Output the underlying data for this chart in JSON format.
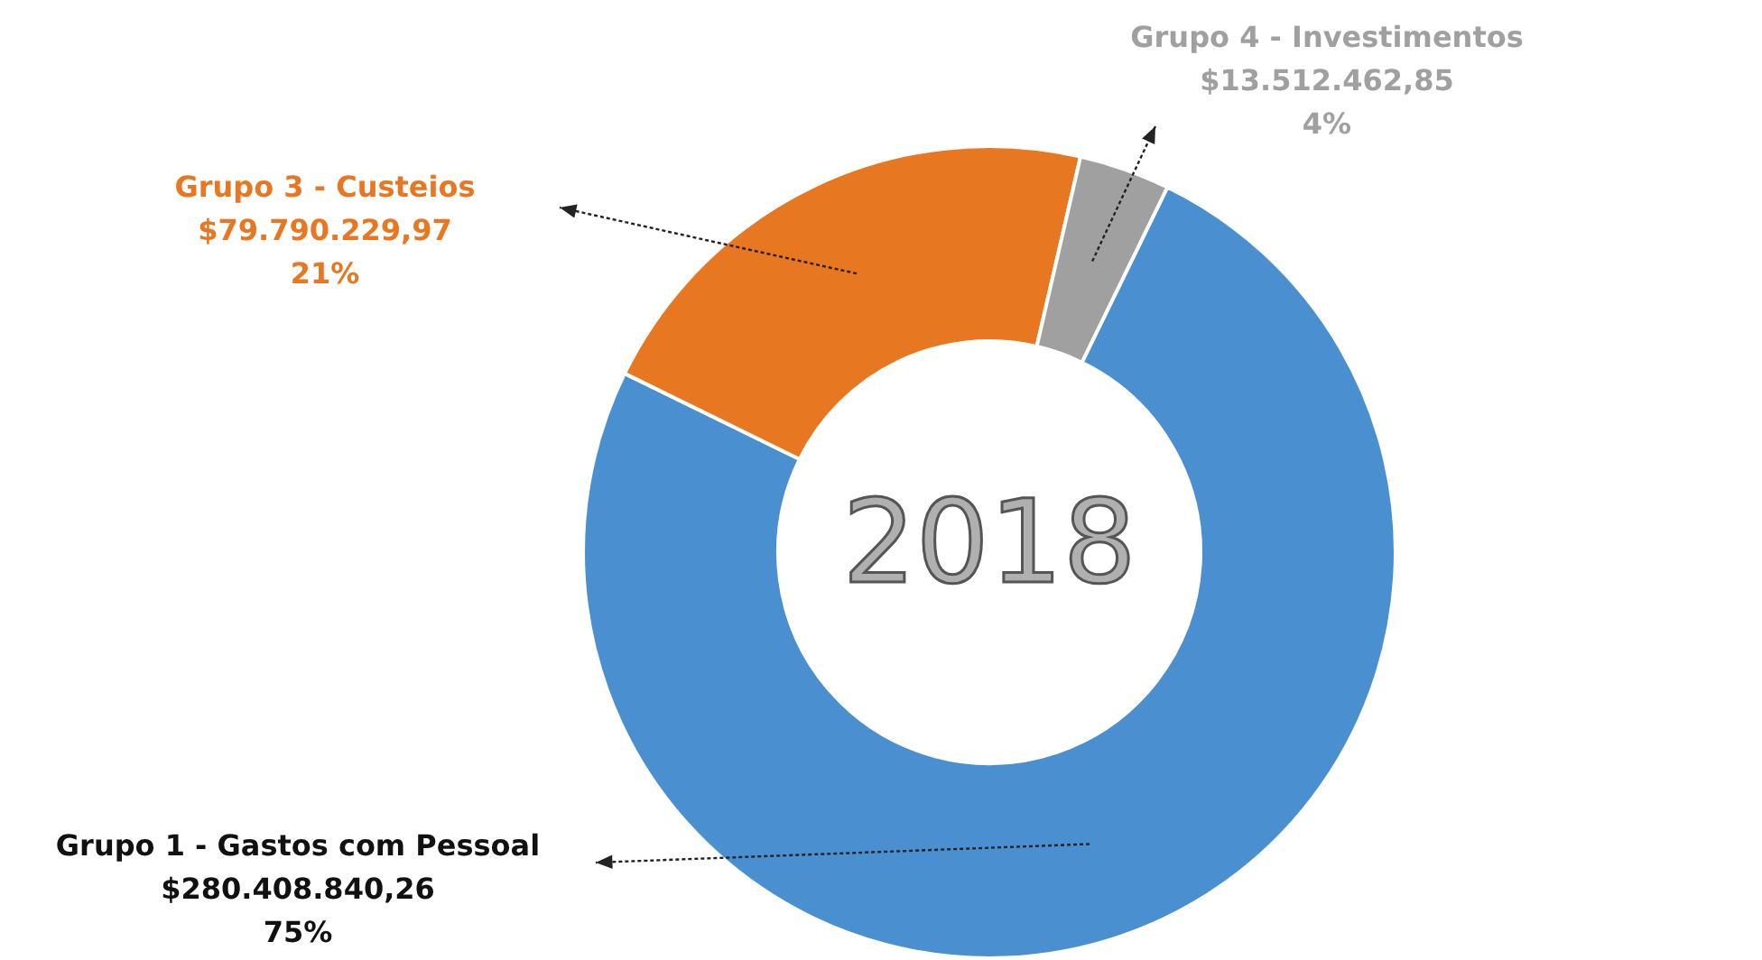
{
  "chart_data": {
    "type": "donut",
    "title": "2018",
    "categories": [
      "Grupo 1 - Gastos com Pessoal",
      "Grupo 3 - Custeios",
      "Grupo 4 - Investimentos"
    ],
    "values": [
      280408840.26,
      79790229.97,
      13512462.85
    ],
    "colors": [
      "#4a90d0",
      "#e87722",
      "#a0a0a0"
    ],
    "value_labels": [
      "$280.408.840,26\n75%",
      "$79.790.229,97\n21%",
      "$13.512.462,85\n4%"
    ],
    "legend": false
  }
}
